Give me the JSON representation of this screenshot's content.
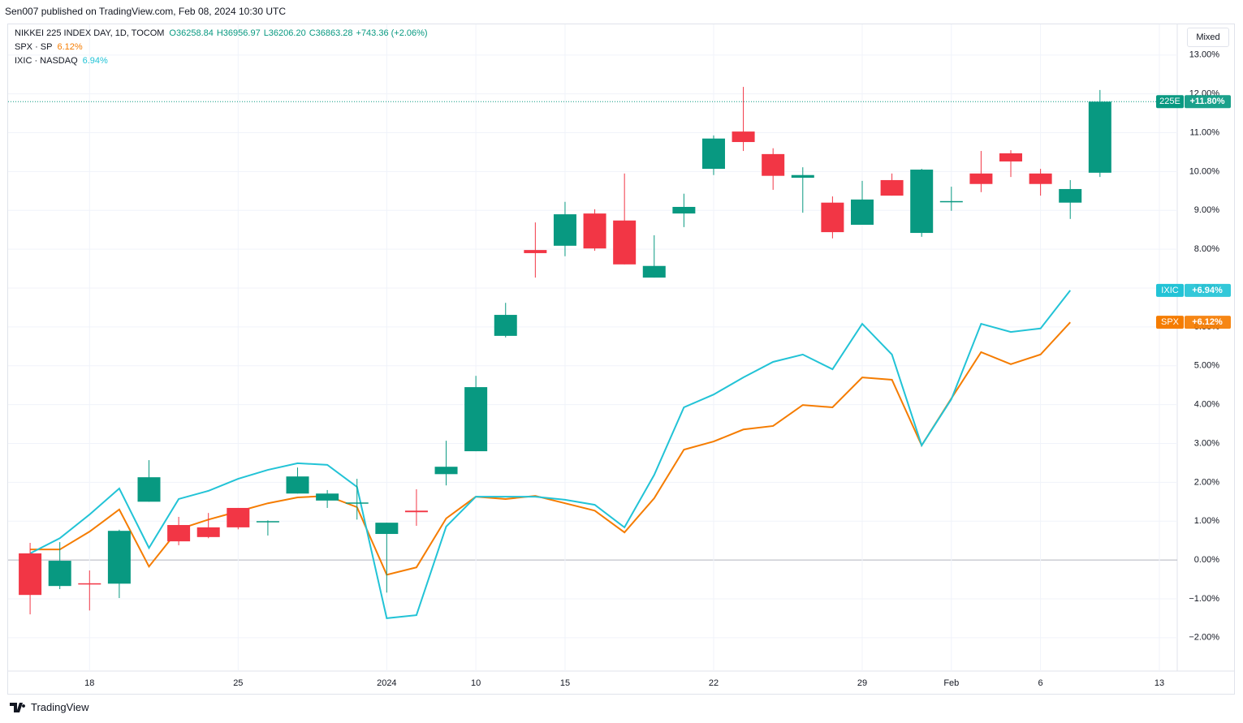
{
  "chart_data": {
    "type": "candlestick",
    "header": "Sen007 published on TradingView.com, Feb 08, 2024 10:30 UTC",
    "footer": "TradingView",
    "button": "Mixed",
    "xlim": [
      -0.74,
      38.6
    ],
    "xticks": [
      {
        "value": 2,
        "label": "18"
      },
      {
        "value": 7,
        "label": "25"
      },
      {
        "value": 12,
        "label": "2024"
      },
      {
        "value": 15,
        "label": "10"
      },
      {
        "value": 18,
        "label": "15"
      },
      {
        "value": 23,
        "label": "22"
      },
      {
        "value": 28,
        "label": "29"
      },
      {
        "value": 31,
        "label": "Feb"
      },
      {
        "value": 34,
        "label": "6"
      },
      {
        "value": 38,
        "label": "13"
      }
    ],
    "ylim": [
      -2.86,
      13.79
    ],
    "yticks": [
      {
        "value": -2,
        "label": "−2.00%"
      },
      {
        "value": -1,
        "label": "−1.00%"
      },
      {
        "value": 0,
        "label": "0.00%"
      },
      {
        "value": 1,
        "label": "1.00%"
      },
      {
        "value": 2,
        "label": "2.00%"
      },
      {
        "value": 3,
        "label": "3.00%"
      },
      {
        "value": 4,
        "label": "4.00%"
      },
      {
        "value": 5,
        "label": "5.00%"
      },
      {
        "value": 6,
        "label": "6.00%"
      },
      {
        "value": 7,
        "label": "7.00%"
      },
      {
        "value": 8,
        "label": "8.00%"
      },
      {
        "value": 9,
        "label": "9.00%"
      },
      {
        "value": 10,
        "label": "10.00%"
      },
      {
        "value": 11,
        "label": "11.00%"
      },
      {
        "value": 12,
        "label": "12.00%"
      },
      {
        "value": 13,
        "label": "13.00%"
      }
    ],
    "grid": true,
    "candles": {
      "name": "NIKKEI 225 INDEX DAY, 1D, TOCOM",
      "ohlc_labels": [
        "O36258.84",
        "H36956.97",
        "L36206.20",
        "C36863.28",
        "+743.36 (+2.06%)"
      ],
      "up_color": "#089981",
      "down_color": "#f23645",
      "badge": "225E",
      "badge_value": "+11.80%",
      "open": [
        0.17,
        -0.67,
        -0.6,
        -0.61,
        1.5,
        0.9,
        0.84,
        1.34,
        0.98,
        1.71,
        1.53,
        1.46,
        0.67,
        1.27,
        2.21,
        2.8,
        5.77,
        7.98,
        8.09,
        8.92,
        8.74,
        7.27,
        8.92,
        10.07,
        11.03,
        10.45,
        9.84,
        9.2,
        8.63,
        9.78,
        8.42,
        9.22,
        9.95,
        10.47,
        9.95,
        9.2,
        9.97
      ],
      "high": [
        0.44,
        0.46,
        -0.27,
        0.78,
        2.57,
        1.11,
        1.21,
        1.34,
        1.02,
        2.38,
        1.8,
        2.09,
        0.96,
        1.82,
        3.07,
        4.74,
        6.62,
        8.69,
        9.22,
        9.03,
        9.95,
        8.36,
        9.43,
        10.93,
        12.18,
        10.6,
        10.11,
        9.36,
        9.76,
        9.95,
        10.07,
        9.61,
        10.53,
        10.55,
        10.07,
        9.78,
        12.1
      ],
      "low": [
        -1.4,
        -0.75,
        -1.3,
        -0.98,
        1.5,
        0.38,
        0.56,
        0.79,
        0.63,
        1.71,
        1.34,
        1.04,
        -0.84,
        0.88,
        1.92,
        2.8,
        5.73,
        7.27,
        7.82,
        7.96,
        7.61,
        7.27,
        8.57,
        9.91,
        10.53,
        9.53,
        8.94,
        8.28,
        8.63,
        9.38,
        8.32,
        8.99,
        9.47,
        9.86,
        9.38,
        8.78,
        9.86
      ],
      "close": [
        -0.9,
        -0.02,
        -0.63,
        0.75,
        2.13,
        0.48,
        0.59,
        0.84,
        1.0,
        2.15,
        1.71,
        1.48,
        0.96,
        1.23,
        2.4,
        4.45,
        6.31,
        7.9,
        8.9,
        8.02,
        7.61,
        7.57,
        9.09,
        10.85,
        10.76,
        9.89,
        9.91,
        8.44,
        9.28,
        9.38,
        10.05,
        9.24,
        9.68,
        10.26,
        9.68,
        9.55,
        11.8
      ]
    },
    "series": [
      {
        "name": "SPX · SP",
        "color": "#f57c00",
        "legend_value": "6.12%",
        "badge": "SPX",
        "badge_value": "+6.12%",
        "values": [
          0.27,
          0.27,
          0.73,
          1.3,
          -0.17,
          0.79,
          1.04,
          1.25,
          1.46,
          1.61,
          1.65,
          1.36,
          -0.38,
          -0.19,
          1.07,
          1.63,
          1.57,
          1.65,
          1.46,
          1.27,
          0.71,
          1.59,
          2.84,
          3.05,
          3.36,
          3.45,
          3.99,
          3.93,
          4.7,
          4.64,
          2.95,
          4.16,
          5.35,
          5.04,
          5.29,
          6.12
        ]
      },
      {
        "name": "IXIC · NASDAQ",
        "color": "#22c3d6",
        "legend_value": "6.94%",
        "badge": "IXIC",
        "badge_value": "+6.94%",
        "values": [
          0.17,
          0.56,
          1.17,
          1.84,
          0.31,
          1.57,
          1.78,
          2.09,
          2.32,
          2.49,
          2.45,
          1.88,
          -1.5,
          -1.42,
          0.86,
          1.63,
          1.63,
          1.63,
          1.55,
          1.42,
          0.84,
          2.19,
          3.93,
          4.26,
          4.7,
          5.1,
          5.29,
          4.91,
          6.08,
          5.29,
          2.95,
          4.14,
          6.08,
          5.87,
          5.96,
          6.94
        ]
      }
    ]
  }
}
